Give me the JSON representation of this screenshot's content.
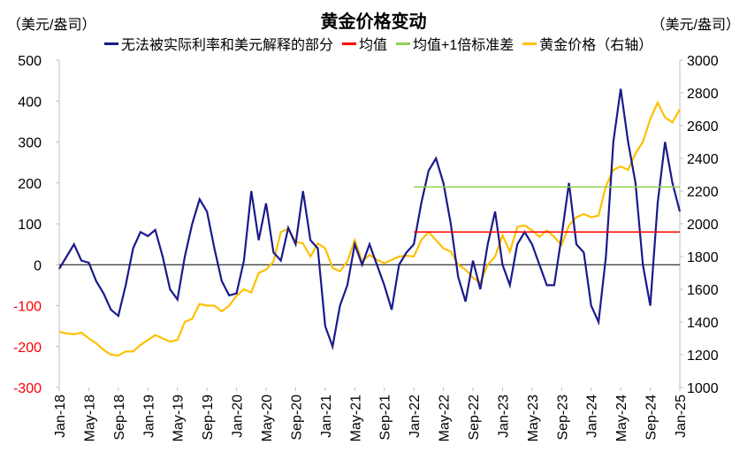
{
  "chart_data": {
    "type": "line",
    "title": "黄金价格变动",
    "ylabel_left": "（美元/盎司）",
    "ylabel_right": "（美元/盎司）",
    "ylim_left": [
      -300,
      500
    ],
    "ylim_right": [
      1000,
      3000
    ],
    "yticks_left": [
      "500",
      "400",
      "300",
      "200",
      "100",
      "0",
      "-100",
      "-200",
      "-300"
    ],
    "yticks_right": [
      "3000",
      "2800",
      "2600",
      "2400",
      "2200",
      "2000",
      "1800",
      "1600",
      "1400",
      "1200",
      "1000"
    ],
    "xticks": [
      "Jan-18",
      "May-18",
      "Sep-18",
      "Jan-19",
      "May-19",
      "Sep-19",
      "Jan-20",
      "May-20",
      "Sep-20",
      "Jan-21",
      "May-21",
      "Sep-21",
      "Jan-22",
      "May-22",
      "Sep-22",
      "Jan-23",
      "May-23",
      "Sep-23",
      "Jan-24",
      "May-24",
      "Sep-24",
      "Jan-25"
    ],
    "x_start": "Jan-18",
    "x_months": 84,
    "colors": {
      "unexplained": "#1a1a8c",
      "mean": "#ff0000",
      "mean_plus_1sd": "#92d050",
      "gold": "#ffc000",
      "negative_tick": "#ff0000"
    },
    "series": [
      {
        "name": "无法被实际利率和美元解释的部分",
        "axis": "left",
        "start_month": 0,
        "values": [
          -10,
          20,
          50,
          10,
          5,
          -40,
          -70,
          -110,
          -125,
          -50,
          40,
          80,
          70,
          85,
          20,
          -60,
          -85,
          20,
          100,
          160,
          130,
          40,
          -40,
          -75,
          -70,
          10,
          180,
          60,
          150,
          30,
          10,
          90,
          50,
          180,
          60,
          40,
          -150,
          -200,
          -100,
          -50,
          50,
          0,
          50,
          0,
          -50,
          -110,
          0,
          30,
          50,
          150,
          230,
          260,
          200,
          100,
          -30,
          -90,
          10,
          -60,
          50,
          130,
          0,
          -50,
          50,
          80,
          50,
          0,
          -50,
          -50,
          70,
          200,
          50,
          30,
          -100,
          -140,
          20,
          300,
          430,
          300,
          200,
          0,
          -100,
          150,
          300,
          200,
          130
        ]
      },
      {
        "name": "均值",
        "axis": "left",
        "start_month": 48,
        "end_month": 84,
        "value": 80
      },
      {
        "name": "均值+1倍标准差",
        "axis": "left",
        "start_month": 48,
        "end_month": 84,
        "value": 190
      },
      {
        "name": "黄金价格（右轴）",
        "axis": "right",
        "start_month": 0,
        "values": [
          1340,
          1330,
          1325,
          1335,
          1300,
          1270,
          1230,
          1200,
          1195,
          1220,
          1220,
          1260,
          1290,
          1320,
          1300,
          1280,
          1290,
          1400,
          1420,
          1510,
          1500,
          1500,
          1465,
          1500,
          1560,
          1600,
          1580,
          1700,
          1720,
          1770,
          1950,
          1970,
          1890,
          1880,
          1800,
          1880,
          1850,
          1730,
          1710,
          1770,
          1900,
          1770,
          1810,
          1780,
          1760,
          1780,
          1800,
          1805,
          1800,
          1900,
          1950,
          1900,
          1850,
          1830,
          1750,
          1720,
          1670,
          1640,
          1750,
          1800,
          1930,
          1830,
          1980,
          1990,
          1960,
          1920,
          1960,
          1920,
          1870,
          1990,
          2040,
          2060,
          2040,
          2050,
          2230,
          2330,
          2350,
          2330,
          2430,
          2500,
          2640,
          2740,
          2650,
          2620,
          2700
        ]
      }
    ]
  }
}
